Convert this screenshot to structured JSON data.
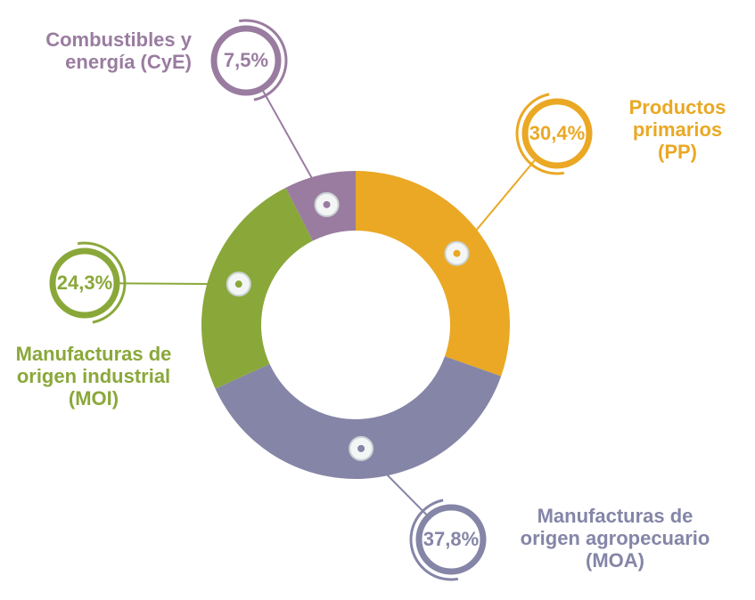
{
  "chart_data": {
    "type": "pie",
    "categories": [
      "Productos primarios (PP)",
      "Manufacturas de origen agropecuario (MOA)",
      "Manufacturas de origen industrial (MOI)",
      "Combustibles y energía (CyE)"
    ],
    "values": [
      30.4,
      37.8,
      24.3,
      7.5
    ],
    "value_labels": [
      "30,4%",
      "37,8%",
      "24,3%",
      "7,5%"
    ],
    "colors": [
      "#eaa824",
      "#8585a8",
      "#8aa83a",
      "#9a7ca0"
    ]
  }
}
